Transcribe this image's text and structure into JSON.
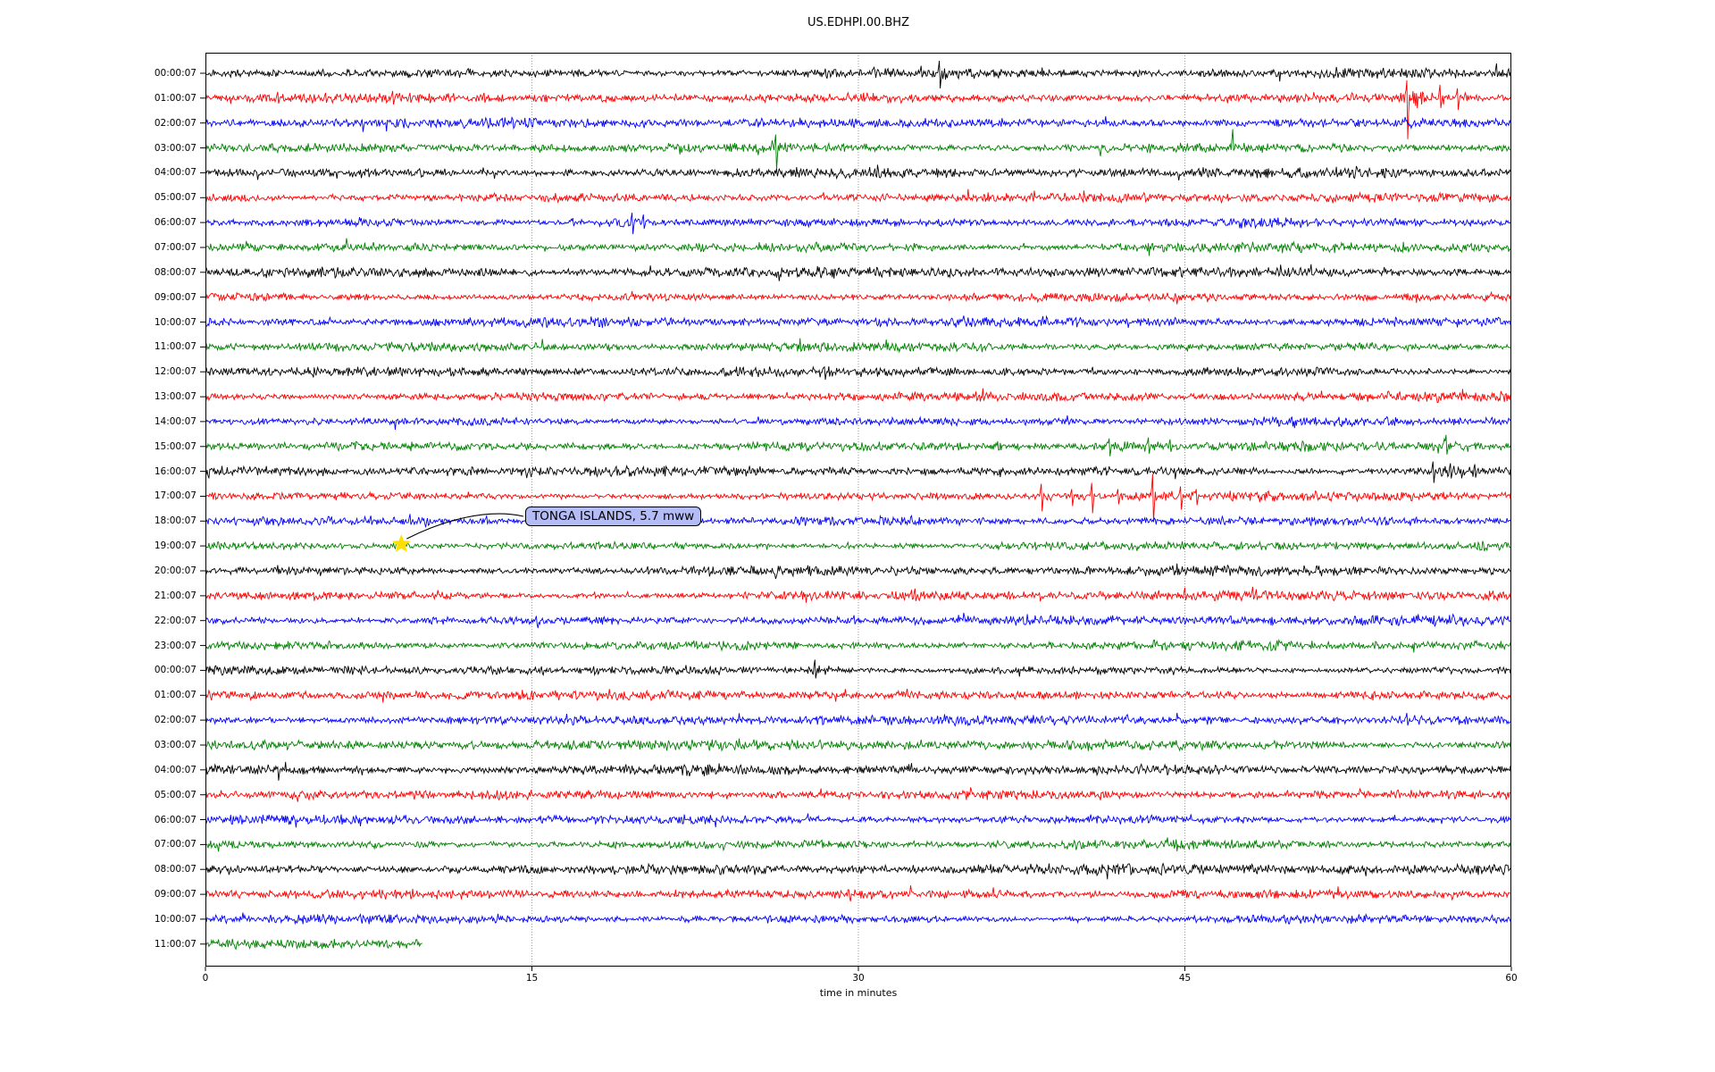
{
  "chart_data": {
    "type": "line",
    "variant": "helicorder-dayplot",
    "title": "US.EDHPI.00.BHZ",
    "xlabel": "time in minutes",
    "x_ticks": [
      0,
      15,
      30,
      45,
      60
    ],
    "x_range_minutes": [
      0,
      60
    ],
    "grid": {
      "vertical_gridline_minutes": [
        15,
        30,
        45
      ],
      "style": "dotted",
      "color": "#999999"
    },
    "colors_cycle": [
      "#000000",
      "#ff0000",
      "#0000ff",
      "#008000"
    ],
    "rows": [
      {
        "label": "00:00:07",
        "color": "#000000",
        "end": 60,
        "amp": 3.4,
        "bursts": [
          [
            0.6,
            9.0,
            1.4
          ],
          [
            33.5,
            36.0,
            3.5
          ]
        ],
        "spikes": [
          [
            33.7,
            14,
            17
          ],
          [
            59.3,
            11,
            4
          ]
        ]
      },
      {
        "label": "01:00:07",
        "color": "#ff0000",
        "end": 60,
        "amp": 3.4,
        "bursts": [
          [
            54.6,
            58.6,
            8
          ]
        ],
        "spikes": [
          [
            3.3,
            7,
            6
          ],
          [
            5.5,
            6,
            5
          ],
          [
            8.6,
            8,
            7
          ],
          [
            9.4,
            6,
            5
          ],
          [
            12.8,
            6,
            5
          ],
          [
            55.2,
            20,
            46
          ],
          [
            56.7,
            15,
            11
          ],
          [
            57.5,
            11,
            13
          ]
        ]
      },
      {
        "label": "02:00:07",
        "color": "#0000ff",
        "end": 60,
        "amp": 3.3,
        "bursts": [],
        "spikes": [
          [
            7.2,
            4,
            10
          ],
          [
            12.7,
            5,
            3
          ]
        ]
      },
      {
        "label": "03:00:07",
        "color": "#008000",
        "end": 60,
        "amp": 3.3,
        "bursts": [
          [
            25.2,
            27.4,
            7
          ]
        ],
        "spikes": [
          [
            26.2,
            15,
            25
          ],
          [
            47.2,
            21,
            3
          ]
        ]
      },
      {
        "label": "04:00:07",
        "color": "#000000",
        "end": 60,
        "amp": 3.4,
        "bursts": [],
        "spikes": []
      },
      {
        "label": "05:00:07",
        "color": "#ff0000",
        "end": 60,
        "amp": 3.2,
        "bursts": [],
        "spikes": [
          [
            28.4,
            6,
            2
          ]
        ]
      },
      {
        "label": "06:00:07",
        "color": "#0000ff",
        "end": 60,
        "amp": 3.3,
        "bursts": [
          [
            18.3,
            21.3,
            5.5
          ]
        ],
        "spikes": [
          [
            16.9,
            5,
            4
          ],
          [
            19.6,
            11,
            13
          ],
          [
            20.1,
            9,
            7
          ]
        ]
      },
      {
        "label": "07:00:07",
        "color": "#008000",
        "end": 60,
        "amp": 3.3,
        "bursts": [],
        "spikes": []
      },
      {
        "label": "08:00:07",
        "color": "#000000",
        "end": 60,
        "amp": 3.4,
        "bursts": [],
        "spikes": []
      },
      {
        "label": "09:00:07",
        "color": "#ff0000",
        "end": 60,
        "amp": 3.3,
        "bursts": [],
        "spikes": []
      },
      {
        "label": "10:00:07",
        "color": "#0000ff",
        "end": 60,
        "amp": 3.3,
        "bursts": [],
        "spikes": []
      },
      {
        "label": "11:00:07",
        "color": "#008000",
        "end": 60,
        "amp": 3.3,
        "bursts": [],
        "spikes": []
      },
      {
        "label": "12:00:07",
        "color": "#000000",
        "end": 60,
        "amp": 3.5,
        "bursts": [],
        "spikes": []
      },
      {
        "label": "13:00:07",
        "color": "#ff0000",
        "end": 60,
        "amp": 3.6,
        "bursts": [],
        "spikes": []
      },
      {
        "label": "14:00:07",
        "color": "#0000ff",
        "end": 60,
        "amp": 3.3,
        "bursts": [],
        "spikes": []
      },
      {
        "label": "15:00:07",
        "color": "#008000",
        "end": 60,
        "amp": 3.3,
        "bursts": [
          [
            40.9,
            45.3,
            4.5
          ],
          [
            56.3,
            58.3,
            6
          ]
        ],
        "spikes": [
          [
            34.0,
            4,
            3
          ],
          [
            41.5,
            9,
            11
          ],
          [
            43.3,
            10,
            8
          ],
          [
            44.3,
            8,
            6
          ],
          [
            57.0,
            13,
            9
          ]
        ]
      },
      {
        "label": "16:00:07",
        "color": "#000000",
        "end": 60,
        "amp": 3.4,
        "bursts": [
          [
            55.8,
            58.9,
            6.5
          ]
        ],
        "spikes": [
          [
            56.4,
            11,
            13
          ],
          [
            57.2,
            9,
            8
          ],
          [
            58.3,
            8,
            7
          ]
        ]
      },
      {
        "label": "17:00:07",
        "color": "#ff0000",
        "end": 60,
        "amp": 3.3,
        "bursts": [
          [
            19.4,
            20.4,
            3.5
          ],
          [
            37.6,
            46.4,
            2.5
          ]
        ],
        "spikes": [
          [
            38.4,
            14,
            17
          ],
          [
            39.8,
            8,
            11
          ],
          [
            40.7,
            15,
            19
          ],
          [
            41.9,
            8,
            9
          ],
          [
            43.5,
            25,
            29
          ],
          [
            44.8,
            11,
            15
          ],
          [
            45.5,
            8,
            10
          ]
        ]
      },
      {
        "label": "18:00:07",
        "color": "#0000ff",
        "end": 60,
        "amp": 3.3,
        "bursts": [],
        "spikes": [
          [
            5.8,
            5,
            3
          ],
          [
            7.6,
            6,
            4
          ],
          [
            9.4,
            8,
            4
          ],
          [
            12.9,
            6,
            3
          ]
        ]
      },
      {
        "label": "19:00:07",
        "color": "#008000",
        "end": 60,
        "amp": 3.3,
        "bursts": [
          [
            37.9,
            38.7,
            3
          ]
        ],
        "spikes": [
          [
            16.8,
            4,
            3
          ],
          [
            29.5,
            4,
            3
          ],
          [
            47.6,
            4,
            3
          ],
          [
            56.0,
            4,
            3
          ]
        ]
      },
      {
        "label": "20:00:07",
        "color": "#000000",
        "end": 60,
        "amp": 3.4,
        "bursts": [],
        "spikes": [
          [
            20.3,
            5,
            4
          ],
          [
            29.7,
            5,
            4
          ]
        ]
      },
      {
        "label": "21:00:07",
        "color": "#ff0000",
        "end": 60,
        "amp": 3.4,
        "bursts": [],
        "spikes": [
          [
            26.6,
            5,
            4
          ],
          [
            32.6,
            8,
            6
          ],
          [
            36.9,
            5,
            4
          ],
          [
            45.0,
            9,
            5
          ],
          [
            48.1,
            10,
            4
          ]
        ]
      },
      {
        "label": "22:00:07",
        "color": "#0000ff",
        "end": 60,
        "amp": 3.3,
        "bursts": [],
        "spikes": [
          [
            29.8,
            6,
            4
          ],
          [
            42.8,
            5,
            3
          ]
        ]
      },
      {
        "label": "23:00:07",
        "color": "#008000",
        "end": 60,
        "amp": 3.3,
        "bursts": [],
        "spikes": []
      },
      {
        "label": "00:00:07",
        "color": "#000000",
        "end": 60,
        "amp": 3.4,
        "bursts": [
          [
            27.4,
            29.3,
            5.5
          ]
        ],
        "spikes": [
          [
            23.2,
            4,
            3
          ],
          [
            28.0,
            12,
            9
          ]
        ]
      },
      {
        "label": "01:00:07",
        "color": "#ff0000",
        "end": 60,
        "amp": 3.3,
        "bursts": [],
        "spikes": []
      },
      {
        "label": "02:00:07",
        "color": "#0000ff",
        "end": 60,
        "amp": 3.3,
        "bursts": [],
        "spikes": [
          [
            55.2,
            8,
            6
          ]
        ]
      },
      {
        "label": "03:00:07",
        "color": "#008000",
        "end": 60,
        "amp": 3.3,
        "bursts": [],
        "spikes": []
      },
      {
        "label": "04:00:07",
        "color": "#000000",
        "end": 60,
        "amp": 3.4,
        "bursts": [],
        "spikes": [
          [
            3.3,
            3,
            12
          ]
        ]
      },
      {
        "label": "05:00:07",
        "color": "#ff0000",
        "end": 60,
        "amp": 3.3,
        "bursts": [],
        "spikes": []
      },
      {
        "label": "06:00:07",
        "color": "#0000ff",
        "end": 60,
        "amp": 3.3,
        "bursts": [],
        "spikes": []
      },
      {
        "label": "07:00:07",
        "color": "#008000",
        "end": 60,
        "amp": 3.3,
        "bursts": [],
        "spikes": []
      },
      {
        "label": "08:00:07",
        "color": "#000000",
        "end": 60,
        "amp": 3.4,
        "bursts": [],
        "spikes": []
      },
      {
        "label": "09:00:07",
        "color": "#ff0000",
        "end": 60,
        "amp": 3.3,
        "bursts": [],
        "spikes": []
      },
      {
        "label": "10:00:07",
        "color": "#0000ff",
        "end": 60,
        "amp": 3.3,
        "bursts": [],
        "spikes": []
      },
      {
        "label": "11:00:07",
        "color": "#008000",
        "end": 10,
        "amp": 3.4,
        "bursts": [],
        "spikes": []
      }
    ],
    "annotation": {
      "text": "TONGA ISLANDS, 5.7 mww",
      "row_label": "19:00:07",
      "row_index": 19,
      "minute": 9.0,
      "marker": "star",
      "marker_color": "#ffdf00",
      "box_fill": "#b4bcf7",
      "box_border": "#000000"
    }
  }
}
